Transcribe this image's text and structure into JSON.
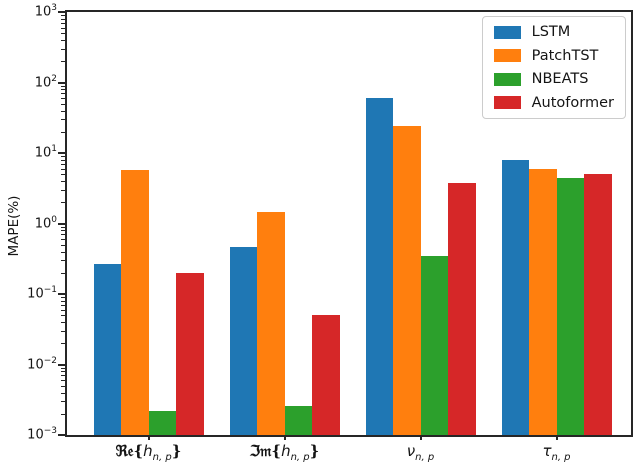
{
  "yaxis": {
    "label": "MAPE(%)",
    "ticks": [
      {
        "base": "10",
        "exp": "3",
        "value": 1000
      },
      {
        "base": "10",
        "exp": "2",
        "value": 100
      },
      {
        "base": "10",
        "exp": "1",
        "value": 10
      },
      {
        "base": "10",
        "exp": "0",
        "value": 1
      },
      {
        "base": "10",
        "exp": "−1",
        "value": 0.1
      },
      {
        "base": "10",
        "exp": "−2",
        "value": 0.01
      },
      {
        "base": "10",
        "exp": "−3",
        "value": 0.001
      }
    ]
  },
  "xaxis": {
    "ticks": [
      {
        "pre": "ℜ𝔢{",
        "main": "h",
        "sub": "n, p",
        "post": "}"
      },
      {
        "pre": "ℑ𝔪{",
        "main": "h",
        "sub": "n, p",
        "post": "}"
      },
      {
        "pre": "",
        "main": "ν",
        "sub": "n, p",
        "post": ""
      },
      {
        "pre": "",
        "main": "τ",
        "sub": "n, p",
        "post": ""
      }
    ]
  },
  "legend": {
    "items": [
      {
        "label": "LSTM"
      },
      {
        "label": "PatchTST"
      },
      {
        "label": "NBEATS"
      },
      {
        "label": "Autoformer"
      }
    ]
  },
  "chart_data": {
    "type": "bar",
    "yscale": "log",
    "ylim": [
      0.001,
      1000
    ],
    "ylabel": "MAPE(%)",
    "grid": false,
    "legend_position": "upper right",
    "categories": [
      "ℜ𝔢{h_{n,p}}",
      "ℑ𝔪{h_{n,p}}",
      "ν_{n,p}",
      "τ_{n,p}"
    ],
    "series": [
      {
        "name": "LSTM",
        "color": "#1f77b4",
        "values": [
          0.27,
          0.47,
          60,
          8.0
        ]
      },
      {
        "name": "PatchTST",
        "color": "#ff7f0e",
        "values": [
          5.8,
          1.45,
          24,
          6.0
        ]
      },
      {
        "name": "NBEATS",
        "color": "#2ca02c",
        "values": [
          0.0022,
          0.0026,
          0.35,
          4.4
        ]
      },
      {
        "name": "Autoformer",
        "color": "#d62728",
        "values": [
          0.2,
          0.05,
          3.8,
          5.0
        ]
      }
    ]
  },
  "colors": {
    "spine": "#262626",
    "legend_border": "#cccccc",
    "background": "#ffffff"
  }
}
